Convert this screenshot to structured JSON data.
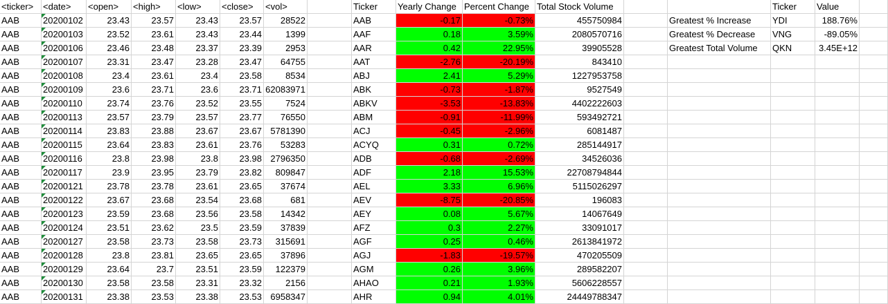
{
  "headers": {
    "ticker": "<ticker>",
    "date": "<date>",
    "open": "<open>",
    "high": "<high>",
    "low": "<low>",
    "close": "<close>",
    "vol": "<vol>",
    "sum_ticker": "Ticker",
    "yearly_change": "Yearly Change",
    "percent_change": "Percent Change",
    "total_volume": "Total Stock Volume",
    "greatest_ticker": "Ticker",
    "greatest_value": "Value"
  },
  "raw_rows": [
    [
      "AAB",
      "20200102",
      "23.43",
      "23.57",
      "23.43",
      "23.57",
      "28522"
    ],
    [
      "AAB",
      "20200103",
      "23.52",
      "23.61",
      "23.43",
      "23.44",
      "1399"
    ],
    [
      "AAB",
      "20200106",
      "23.46",
      "23.48",
      "23.37",
      "23.39",
      "2953"
    ],
    [
      "AAB",
      "20200107",
      "23.31",
      "23.47",
      "23.28",
      "23.47",
      "64755"
    ],
    [
      "AAB",
      "20200108",
      "23.4",
      "23.61",
      "23.4",
      "23.58",
      "8534"
    ],
    [
      "AAB",
      "20200109",
      "23.6",
      "23.71",
      "23.6",
      "23.71",
      "62083971"
    ],
    [
      "AAB",
      "20200110",
      "23.74",
      "23.76",
      "23.52",
      "23.55",
      "7524"
    ],
    [
      "AAB",
      "20200113",
      "23.57",
      "23.79",
      "23.57",
      "23.77",
      "76550"
    ],
    [
      "AAB",
      "20200114",
      "23.83",
      "23.88",
      "23.67",
      "23.67",
      "5781390"
    ],
    [
      "AAB",
      "20200115",
      "23.64",
      "23.83",
      "23.61",
      "23.76",
      "53283"
    ],
    [
      "AAB",
      "20200116",
      "23.8",
      "23.98",
      "23.8",
      "23.98",
      "2796350"
    ],
    [
      "AAB",
      "20200117",
      "23.9",
      "23.95",
      "23.79",
      "23.82",
      "809847"
    ],
    [
      "AAB",
      "20200121",
      "23.78",
      "23.78",
      "23.61",
      "23.65",
      "37674"
    ],
    [
      "AAB",
      "20200122",
      "23.67",
      "23.68",
      "23.54",
      "23.68",
      "681"
    ],
    [
      "AAB",
      "20200123",
      "23.59",
      "23.68",
      "23.56",
      "23.58",
      "14342"
    ],
    [
      "AAB",
      "20200124",
      "23.51",
      "23.62",
      "23.5",
      "23.59",
      "37839"
    ],
    [
      "AAB",
      "20200127",
      "23.58",
      "23.73",
      "23.58",
      "23.73",
      "315691"
    ],
    [
      "AAB",
      "20200128",
      "23.8",
      "23.81",
      "23.65",
      "23.65",
      "37896"
    ],
    [
      "AAB",
      "20200129",
      "23.64",
      "23.7",
      "23.51",
      "23.59",
      "122379"
    ],
    [
      "AAB",
      "20200130",
      "23.58",
      "23.58",
      "23.31",
      "23.32",
      "2156"
    ],
    [
      "AAB",
      "20200131",
      "23.38",
      "23.53",
      "23.38",
      "23.53",
      "6958347"
    ]
  ],
  "summary_rows": [
    [
      "AAB",
      "-0.17",
      "-0.73%",
      "455750984",
      "neg"
    ],
    [
      "AAF",
      "0.18",
      "3.59%",
      "2080570716",
      "pos"
    ],
    [
      "AAR",
      "0.42",
      "22.95%",
      "39905528",
      "pos"
    ],
    [
      "AAT",
      "-2.76",
      "-20.19%",
      "843410",
      "neg"
    ],
    [
      "ABJ",
      "2.41",
      "5.29%",
      "1227953758",
      "pos"
    ],
    [
      "ABK",
      "-0.73",
      "-1.87%",
      "9527549",
      "neg"
    ],
    [
      "ABKV",
      "-3.53",
      "-13.83%",
      "4402222603",
      "neg"
    ],
    [
      "ABM",
      "-0.91",
      "-11.99%",
      "593492721",
      "neg"
    ],
    [
      "ACJ",
      "-0.45",
      "-2.96%",
      "6081487",
      "neg"
    ],
    [
      "ACYQ",
      "0.31",
      "0.72%",
      "285144917",
      "pos"
    ],
    [
      "ADB",
      "-0.68",
      "-2.69%",
      "34526036",
      "neg"
    ],
    [
      "ADF",
      "2.18",
      "15.53%",
      "22708794844",
      "pos"
    ],
    [
      "AEL",
      "3.33",
      "6.96%",
      "5115026297",
      "pos"
    ],
    [
      "AEV",
      "-8.75",
      "-20.85%",
      "196083",
      "neg"
    ],
    [
      "AEY",
      "0.08",
      "5.67%",
      "14067649",
      "pos"
    ],
    [
      "AFZ",
      "0.3",
      "2.27%",
      "33091017",
      "pos"
    ],
    [
      "AGF",
      "0.25",
      "0.46%",
      "2613841972",
      "pos"
    ],
    [
      "AGJ",
      "-1.83",
      "-19.57%",
      "470205509",
      "neg"
    ],
    [
      "AGM",
      "0.26",
      "3.96%",
      "289582207",
      "pos"
    ],
    [
      "AHAO",
      "0.21",
      "1.93%",
      "5606228557",
      "pos"
    ],
    [
      "AHR",
      "0.94",
      "4.01%",
      "24449788347",
      "pos"
    ]
  ],
  "greatest": [
    [
      "Greatest % Increase",
      "YDI",
      "188.76%"
    ],
    [
      "Greatest % Decrease",
      "VNG",
      "-89.05%"
    ],
    [
      "Greatest Total Volume",
      "QKN",
      "3.45E+12"
    ]
  ],
  "colors": {
    "positive_fill": "#00ff00",
    "negative_fill": "#ff0000",
    "grid_line": "#d4d4d4",
    "comment_marker": "#1e8c3a"
  }
}
